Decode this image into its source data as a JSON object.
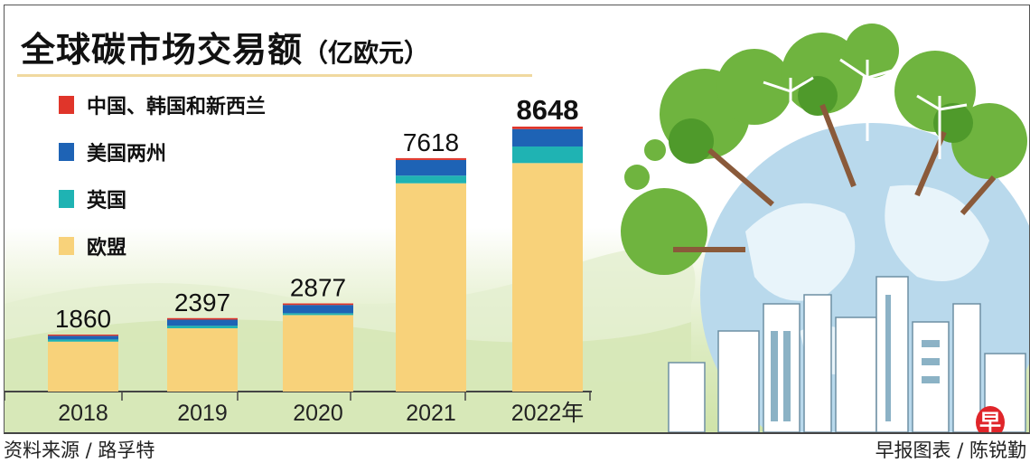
{
  "title": {
    "main": "全球碳市场交易额",
    "unit": "（亿欧元）"
  },
  "source": "资料来源 / 路孚特",
  "credit": "早报图表 / 陈锐勤",
  "logo_text": "早",
  "chart_data": {
    "type": "bar",
    "stacked": true,
    "title": "全球碳市场交易额（亿欧元）",
    "xlabel": "",
    "ylabel": "亿欧元",
    "categories": [
      "2018",
      "2019",
      "2020",
      "2021",
      "2022年"
    ],
    "totals": [
      1860,
      2397,
      2877,
      7618,
      8648
    ],
    "series": [
      {
        "name": "欧盟",
        "color": "#f8d27a",
        "values": [
          1630,
          2067,
          2497,
          6798,
          7458
        ]
      },
      {
        "name": "英国",
        "color": "#1fb3b3",
        "values": [
          70,
          80,
          60,
          250,
          540
        ]
      },
      {
        "name": "美国两州",
        "color": "#1e63b5",
        "values": [
          120,
          200,
          270,
          510,
          570
        ]
      },
      {
        "name": "中国、韩国和新西兰",
        "color": "#e0352a",
        "values": [
          40,
          50,
          50,
          60,
          80
        ]
      }
    ],
    "legend_order": [
      "中国、韩国和新西兰",
      "美国两州",
      "英国",
      "欧盟"
    ],
    "ylim": [
      0,
      8648
    ],
    "grid": false,
    "legend_placement": "top-left"
  }
}
